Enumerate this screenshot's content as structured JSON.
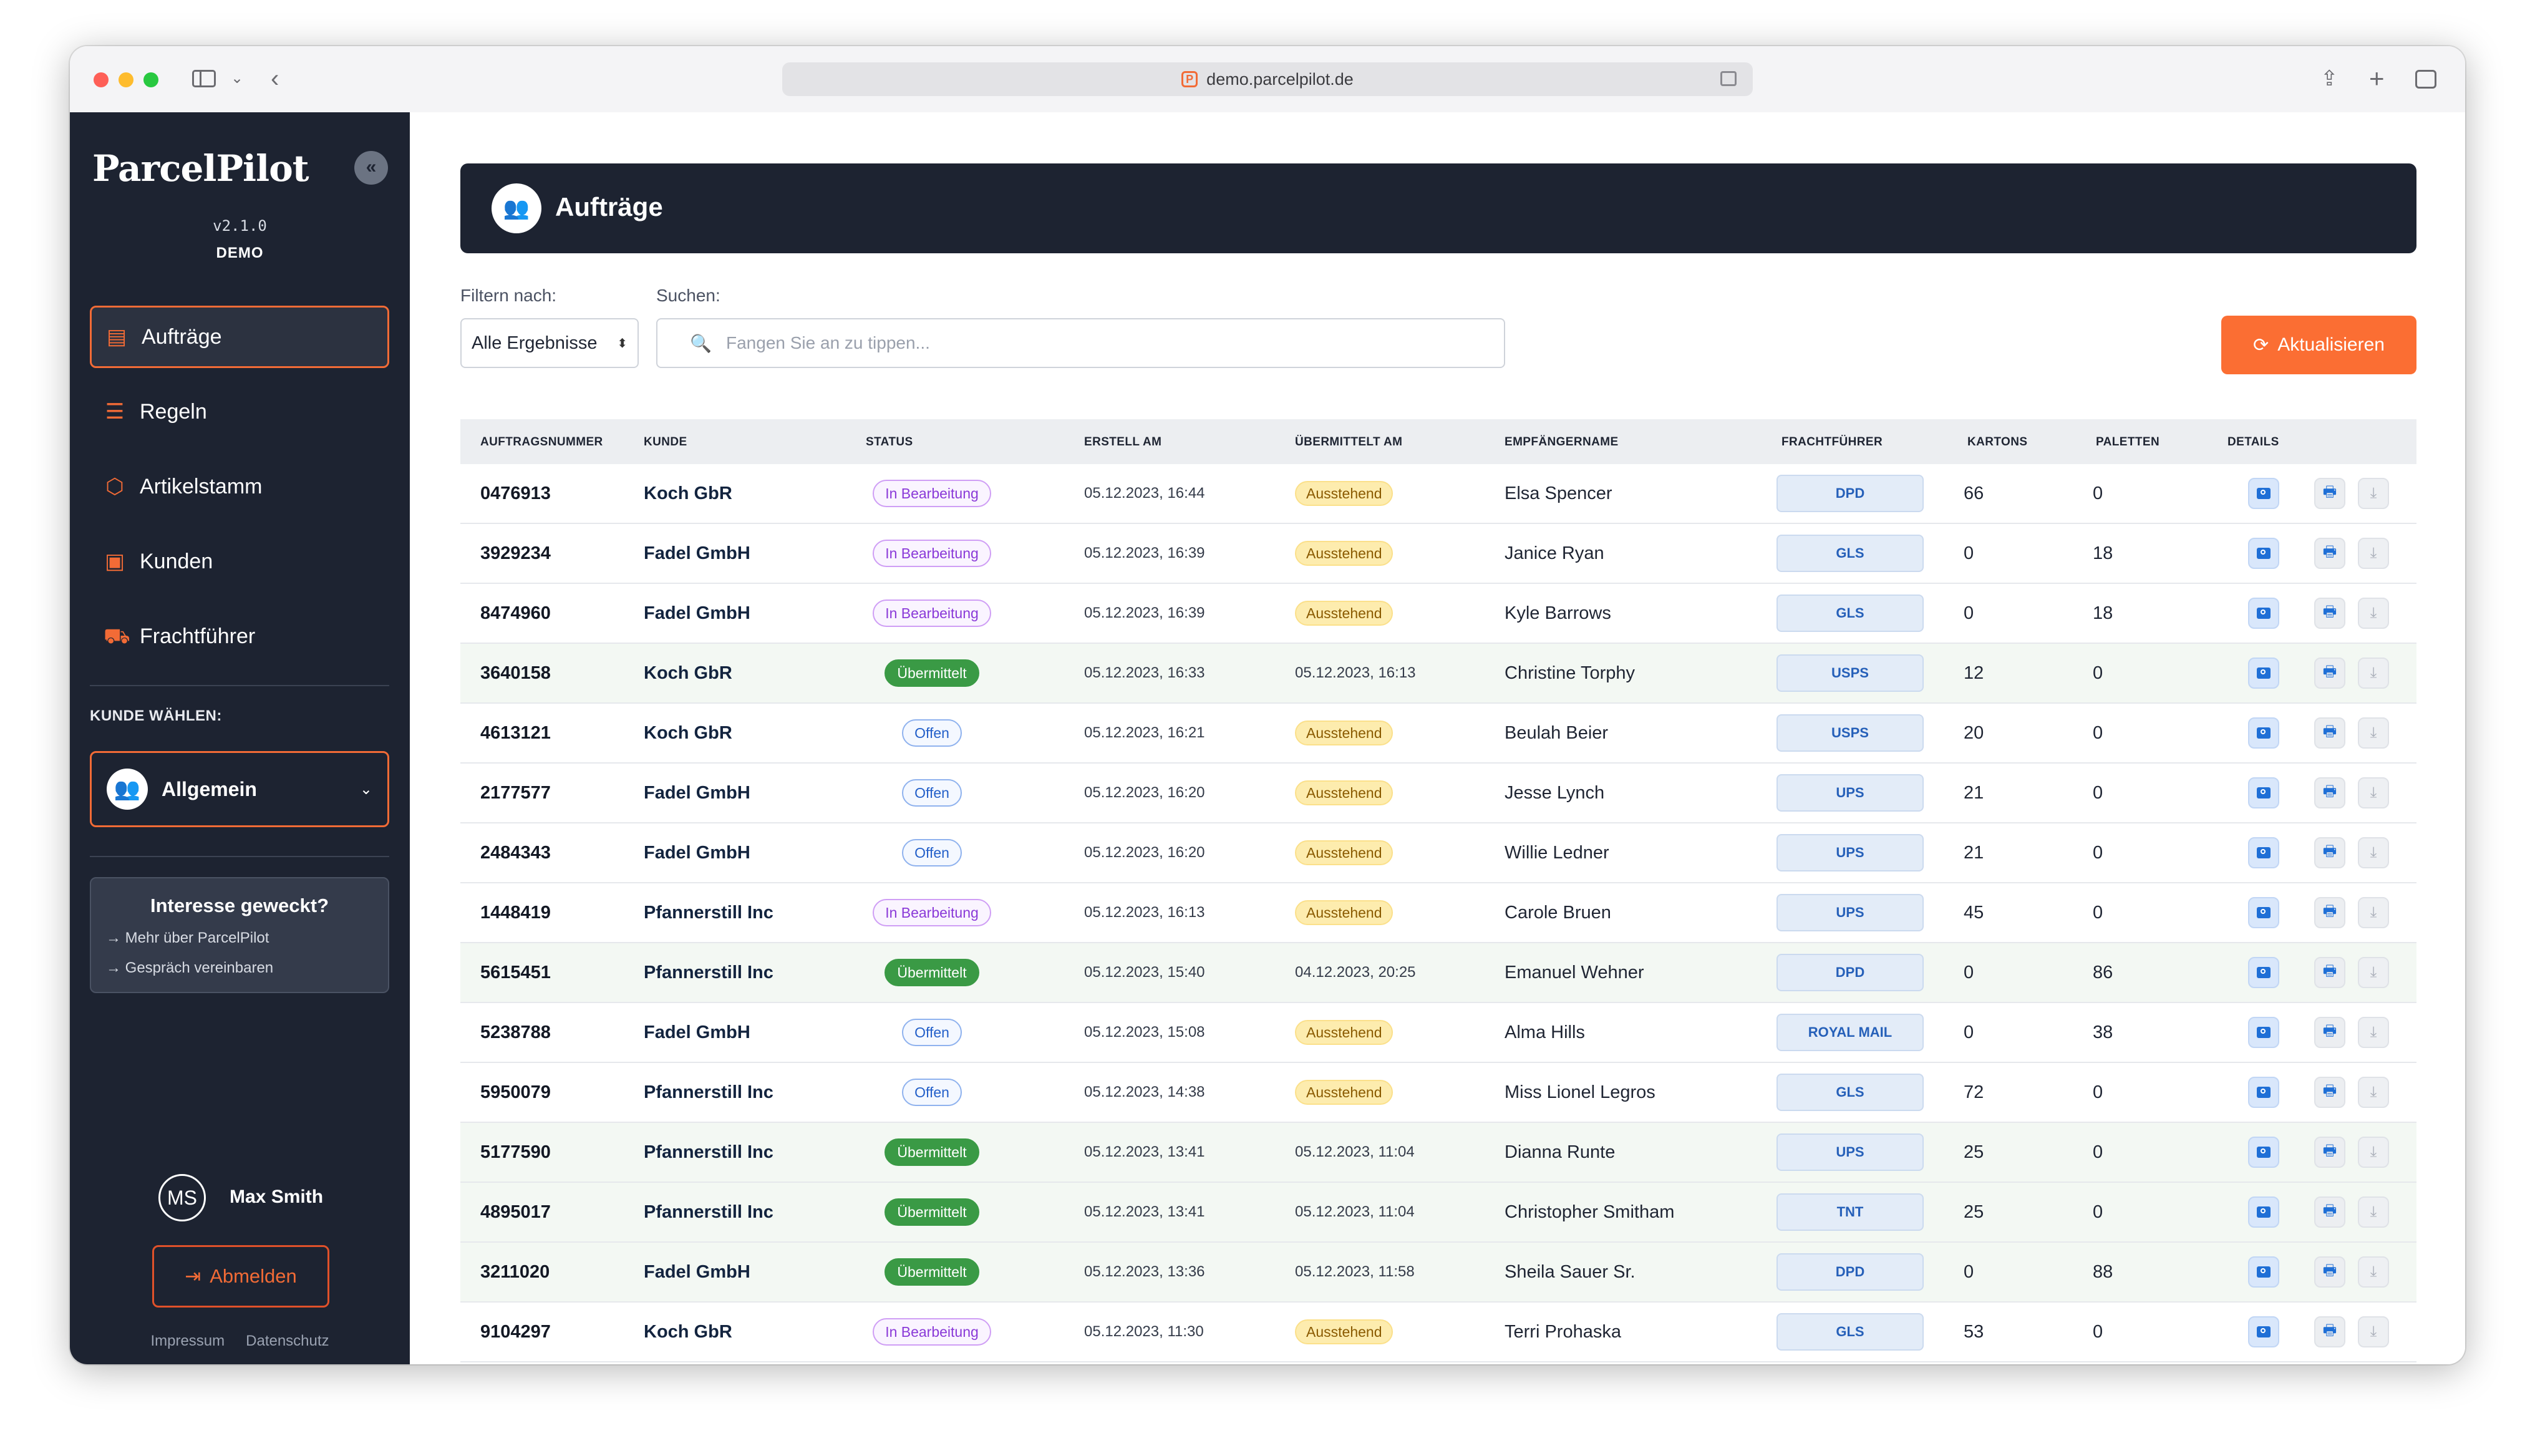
{
  "browser": {
    "url": "demo.parcelpilot.de"
  },
  "sidebar": {
    "logo": "ParcelPilot",
    "collapse_icon": "«",
    "version": "v2.1.0",
    "env": "DEMO",
    "nav": [
      {
        "label": "Aufträge",
        "icon": "clipboard-icon",
        "active": true
      },
      {
        "label": "Regeln",
        "icon": "sliders-icon",
        "active": false
      },
      {
        "label": "Artikelstamm",
        "icon": "box-icon",
        "active": false
      },
      {
        "label": "Kunden",
        "icon": "contacts-icon",
        "active": false
      },
      {
        "label": "Frachtführer",
        "icon": "truck-icon",
        "active": false
      }
    ],
    "customer_label": "KUNDE WÄHLEN:",
    "customer_value": "Allgemein",
    "promo": {
      "title": "Interesse geweckt?",
      "link1": "→ Mehr über ParcelPilot",
      "link2": "→ Gespräch vereinbaren"
    },
    "user": {
      "initials": "MS",
      "name": "Max Smith"
    },
    "logout_label": "Abmelden",
    "footer": {
      "imprint": "Impressum",
      "privacy": "Datenschutz"
    }
  },
  "main": {
    "title": "Aufträge",
    "filter_label": "Filtern nach:",
    "filter_value": "Alle Ergebnisse",
    "search_label": "Suchen:",
    "search_placeholder": "Fangen Sie an zu tippen...",
    "refresh_label": "Aktualisieren"
  },
  "table": {
    "columns": [
      "AUFTRAGSNUMMER",
      "KUNDE",
      "STATUS",
      "ERSTELL AM",
      "ÜBERMITTELT AM",
      "EMPFÄNGERNAME",
      "FRACHTFÜHRER",
      "KARTONS",
      "PALETTEN",
      "DETAILS"
    ],
    "rows": [
      {
        "num": "0476913",
        "customer": "Koch GbR",
        "status": "In Bearbeitung",
        "created": "05.12.2023, 16:44",
        "sent": "Ausstehend",
        "recipient": "Elsa Spencer",
        "carrier": "DPD",
        "cartons": "66",
        "pallets": "0"
      },
      {
        "num": "3929234",
        "customer": "Fadel GmbH",
        "status": "In Bearbeitung",
        "created": "05.12.2023, 16:39",
        "sent": "Ausstehend",
        "recipient": "Janice Ryan",
        "carrier": "GLS",
        "cartons": "0",
        "pallets": "18"
      },
      {
        "num": "8474960",
        "customer": "Fadel GmbH",
        "status": "In Bearbeitung",
        "created": "05.12.2023, 16:39",
        "sent": "Ausstehend",
        "recipient": "Kyle Barrows",
        "carrier": "GLS",
        "cartons": "0",
        "pallets": "18"
      },
      {
        "num": "3640158",
        "customer": "Koch GbR",
        "status": "Übermittelt",
        "created": "05.12.2023, 16:33",
        "sent": "05.12.2023, 16:13",
        "recipient": "Christine Torphy",
        "carrier": "USPS",
        "cartons": "12",
        "pallets": "0"
      },
      {
        "num": "4613121",
        "customer": "Koch GbR",
        "status": "Offen",
        "created": "05.12.2023, 16:21",
        "sent": "Ausstehend",
        "recipient": "Beulah Beier",
        "carrier": "USPS",
        "cartons": "20",
        "pallets": "0"
      },
      {
        "num": "2177577",
        "customer": "Fadel GmbH",
        "status": "Offen",
        "created": "05.12.2023, 16:20",
        "sent": "Ausstehend",
        "recipient": "Jesse Lynch",
        "carrier": "UPS",
        "cartons": "21",
        "pallets": "0"
      },
      {
        "num": "2484343",
        "customer": "Fadel GmbH",
        "status": "Offen",
        "created": "05.12.2023, 16:20",
        "sent": "Ausstehend",
        "recipient": "Willie Ledner",
        "carrier": "UPS",
        "cartons": "21",
        "pallets": "0"
      },
      {
        "num": "1448419",
        "customer": "Pfannerstill Inc",
        "status": "In Bearbeitung",
        "created": "05.12.2023, 16:13",
        "sent": "Ausstehend",
        "recipient": "Carole Bruen",
        "carrier": "UPS",
        "cartons": "45",
        "pallets": "0"
      },
      {
        "num": "5615451",
        "customer": "Pfannerstill Inc",
        "status": "Übermittelt",
        "created": "05.12.2023, 15:40",
        "sent": "04.12.2023, 20:25",
        "recipient": "Emanuel Wehner",
        "carrier": "DPD",
        "cartons": "0",
        "pallets": "86"
      },
      {
        "num": "5238788",
        "customer": "Fadel GmbH",
        "status": "Offen",
        "created": "05.12.2023, 15:08",
        "sent": "Ausstehend",
        "recipient": "Alma Hills",
        "carrier": "ROYAL MAIL",
        "cartons": "0",
        "pallets": "38"
      },
      {
        "num": "5950079",
        "customer": "Pfannerstill Inc",
        "status": "Offen",
        "created": "05.12.2023, 14:38",
        "sent": "Ausstehend",
        "recipient": "Miss Lionel Legros",
        "carrier": "GLS",
        "cartons": "72",
        "pallets": "0"
      },
      {
        "num": "5177590",
        "customer": "Pfannerstill Inc",
        "status": "Übermittelt",
        "created": "05.12.2023, 13:41",
        "sent": "05.12.2023, 11:04",
        "recipient": "Dianna Runte",
        "carrier": "UPS",
        "cartons": "25",
        "pallets": "0"
      },
      {
        "num": "4895017",
        "customer": "Pfannerstill Inc",
        "status": "Übermittelt",
        "created": "05.12.2023, 13:41",
        "sent": "05.12.2023, 11:04",
        "recipient": "Christopher Smitham",
        "carrier": "TNT",
        "cartons": "25",
        "pallets": "0"
      },
      {
        "num": "3211020",
        "customer": "Fadel GmbH",
        "status": "Übermittelt",
        "created": "05.12.2023, 13:36",
        "sent": "05.12.2023, 11:58",
        "recipient": "Sheila Sauer Sr.",
        "carrier": "DPD",
        "cartons": "0",
        "pallets": "88"
      },
      {
        "num": "9104297",
        "customer": "Koch GbR",
        "status": "In Bearbeitung",
        "created": "05.12.2023, 11:30",
        "sent": "Ausstehend",
        "recipient": "Terri Prohaska",
        "carrier": "GLS",
        "cartons": "53",
        "pallets": "0"
      }
    ]
  },
  "colors": {
    "accent": "#f26b36",
    "sidebar": "#1d2331",
    "sent_green": "#3a9a45",
    "carrier_blue": "#2660b9"
  }
}
